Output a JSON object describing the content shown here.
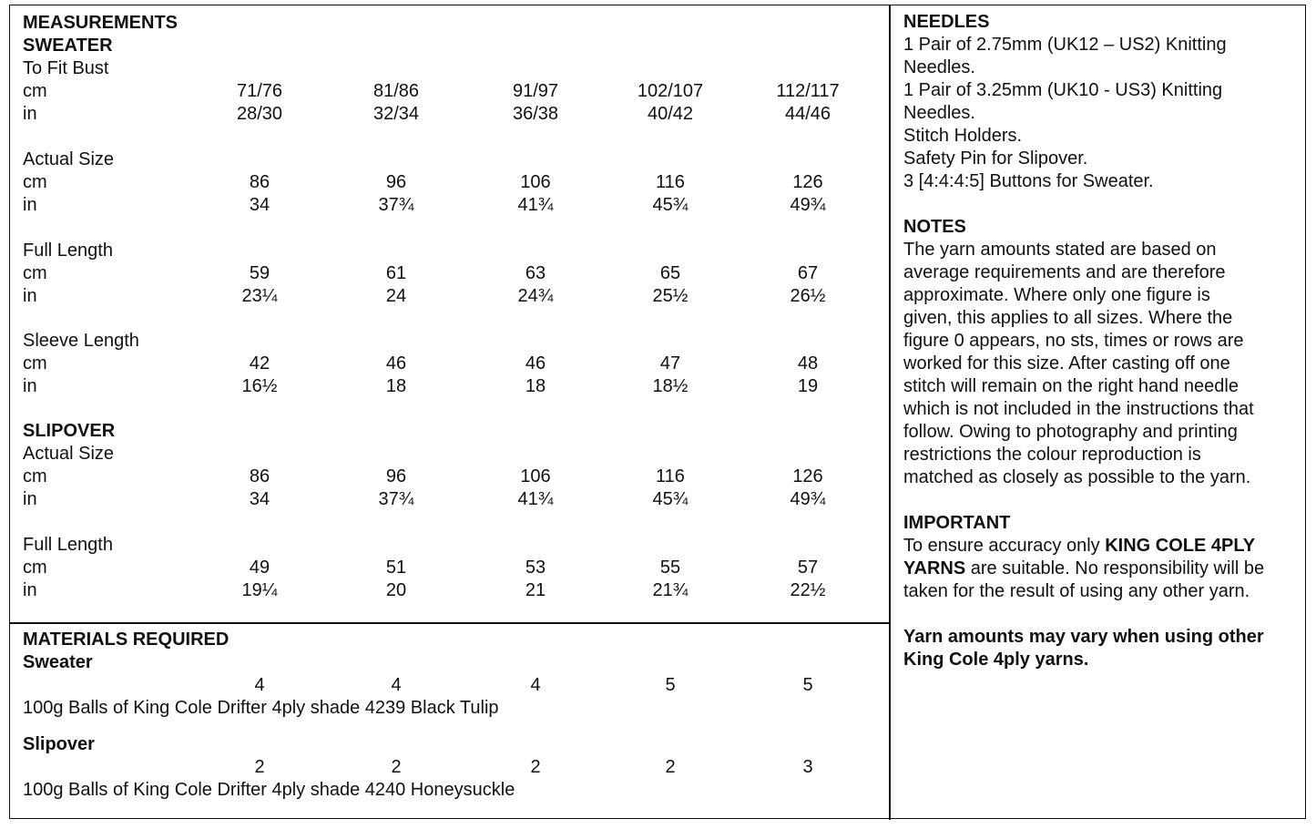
{
  "measurements": {
    "title": "MEASUREMENTS",
    "sweater_heading": "SWEATER",
    "slipover_heading": "SLIPOVER",
    "rows": [
      {
        "label": "To Fit Bust",
        "bold": false,
        "values": []
      },
      {
        "label": "cm",
        "values": [
          "71/76",
          "81/86",
          "91/97",
          "102/107",
          "112/117"
        ]
      },
      {
        "label": "in",
        "values": [
          "28/30",
          "32/34",
          "36/38",
          "40/42",
          "44/46"
        ]
      },
      {
        "label": "Actual Size",
        "values": []
      },
      {
        "label": "cm",
        "values": [
          "86",
          "96",
          "106",
          "116",
          "126"
        ]
      },
      {
        "label": "in",
        "values": [
          "34",
          "37¾",
          "41¾",
          "45¾",
          "49¾"
        ]
      },
      {
        "label": "Full Length",
        "values": []
      },
      {
        "label": "cm",
        "values": [
          "59",
          "61",
          "63",
          "65",
          "67"
        ]
      },
      {
        "label": "in",
        "values": [
          "23¼",
          "24",
          "24¾",
          "25½",
          "26½"
        ]
      },
      {
        "label": "Sleeve Length",
        "values": []
      },
      {
        "label": "cm",
        "values": [
          "42",
          "46",
          "46",
          "47",
          "48"
        ]
      },
      {
        "label": "in",
        "values": [
          "16½",
          "18",
          "18",
          "18½",
          "19"
        ]
      },
      {
        "label": "Actual Size",
        "values": []
      },
      {
        "label": "cm",
        "values": [
          "86",
          "96",
          "106",
          "116",
          "126"
        ]
      },
      {
        "label": "in",
        "values": [
          "34",
          "37¾",
          "41¾",
          "45¾",
          "49¾"
        ]
      },
      {
        "label": "Full Length",
        "values": []
      },
      {
        "label": "cm",
        "values": [
          "49",
          "51",
          "53",
          "55",
          "57"
        ]
      },
      {
        "label": "in",
        "values": [
          "19¼",
          "20",
          "21",
          "21¾",
          "22½"
        ]
      }
    ]
  },
  "materials": {
    "title": "MATERIALS REQUIRED",
    "sweater": {
      "heading": "Sweater",
      "values": [
        "4",
        "4",
        "4",
        "5",
        "5"
      ],
      "description": "100g Balls of King Cole Drifter 4ply shade 4239 Black Tulip"
    },
    "slipover": {
      "heading": "Slipover",
      "values": [
        "2",
        "2",
        "2",
        "2",
        "3"
      ],
      "description": "100g Balls of King Cole Drifter 4ply shade 4240 Honeysuckle"
    }
  },
  "needles": {
    "title": "NEEDLES",
    "lines": [
      "1 Pair of 2.75mm (UK12 – US2) Knitting",
      "Needles.",
      "1 Pair of 3.25mm (UK10 - US3) Knitting",
      "Needles.",
      "Stitch Holders.",
      "Safety Pin for Slipover.",
      "3 [4:4:4:5] Buttons for Sweater."
    ]
  },
  "notes": {
    "title": "NOTES",
    "lines": [
      "The yarn amounts stated are based on",
      "average requirements and are therefore",
      "approximate. Where only one figure is",
      "given, this applies to all sizes. Where the",
      "figure 0 appears, no sts, times or rows are",
      "worked for this size. After casting off one",
      "stitch will remain on the right hand needle",
      "which is not included in the instructions that",
      "follow. Owing to photography and printing",
      "restrictions the colour reproduction is",
      "matched as closely as possible to the yarn."
    ]
  },
  "important": {
    "title": "IMPORTANT",
    "line1_a": "To ensure accuracy only ",
    "line1_b": "KING COLE 4PLY",
    "line2_a": "YARNS",
    "line2_b": " are suitable. No responsibility will be",
    "line3": "taken for the result of using any other yarn.",
    "bold_lines": [
      "Yarn amounts may vary when using other",
      "King Cole 4ply yarns."
    ]
  }
}
